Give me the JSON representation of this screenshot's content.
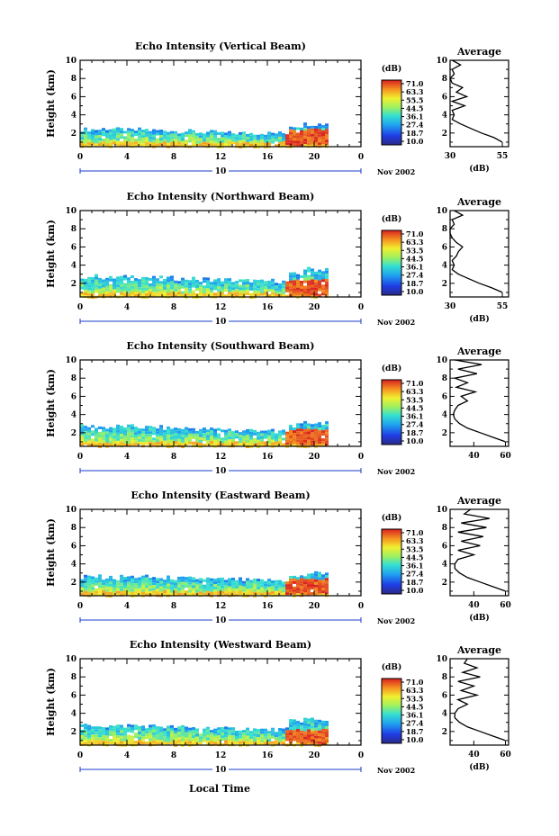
{
  "chart_data": [
    {
      "type": "heatmap",
      "title": "Echo Intensity (Vertical Beam)",
      "ylabel": "Height (km)",
      "xlim": [
        0,
        24
      ],
      "ylim": [
        0.5,
        10
      ],
      "x_ticks": [
        "0",
        "4",
        "8",
        "12",
        "16",
        "20",
        "0"
      ],
      "y_ticks": [
        "2",
        "4",
        "6",
        "8",
        "10"
      ],
      "date_marker": "10",
      "date_label": "Nov 2002",
      "echo_top_km": [
        2.4,
        2.4,
        2.5,
        2.4,
        2.3,
        2.4,
        2.3,
        2.3,
        2.2,
        2.2,
        2.1,
        2.1,
        2.0,
        2.0,
        2.0,
        2.0,
        2.0,
        2.0,
        2.8,
        3.0,
        3.0,
        3.1
      ],
      "strong_echo": {
        "start_h": 17.5,
        "end_h": 21.2,
        "from_km": 0.8,
        "to_km": 2.5
      },
      "colorbar": {
        "unit": "(dB)",
        "labels": [
          "71.0",
          "63.3",
          "55.5",
          "44.5",
          "36.1",
          "27.4",
          "18.7",
          "10.0"
        ]
      },
      "average": {
        "title": "Average",
        "xlabel": "(dB)",
        "x_ticks": [
          "30",
          "55"
        ],
        "xlim": [
          30,
          58
        ],
        "y_ticks": [
          "2",
          "4",
          "6",
          "8",
          "10"
        ],
        "profile": [
          [
            55,
            1
          ],
          [
            51,
            1.5
          ],
          [
            45,
            2
          ],
          [
            40,
            2.5
          ],
          [
            35,
            3
          ],
          [
            31,
            3.5
          ],
          [
            32,
            4
          ],
          [
            31,
            4.5
          ],
          [
            37,
            5
          ],
          [
            31,
            5.5
          ],
          [
            38,
            6
          ],
          [
            33,
            6.5
          ],
          [
            36,
            7
          ],
          [
            31,
            7.5
          ],
          [
            30,
            8
          ],
          [
            32,
            8.5
          ],
          [
            31,
            9
          ],
          [
            35,
            9.5
          ],
          [
            31,
            10
          ]
        ]
      }
    },
    {
      "type": "heatmap",
      "title": "Echo Intensity (Northward Beam)",
      "ylabel": "Height (km)",
      "xlim": [
        0,
        24
      ],
      "ylim": [
        0.5,
        10
      ],
      "x_ticks": [
        "0",
        "4",
        "8",
        "12",
        "16",
        "20",
        "0"
      ],
      "y_ticks": [
        "2",
        "4",
        "6",
        "8",
        "10"
      ],
      "date_marker": "10",
      "date_label": "Nov 2002",
      "echo_top_km": [
        2.7,
        2.8,
        2.6,
        2.7,
        2.8,
        2.7,
        2.6,
        2.6,
        2.5,
        2.5,
        2.5,
        2.4,
        2.4,
        2.3,
        2.3,
        2.2,
        2.3,
        2.2,
        3.0,
        3.6,
        3.5,
        3.7
      ],
      "strong_echo": {
        "start_h": 17.5,
        "end_h": 21.2,
        "from_km": 0.8,
        "to_km": 2.5
      },
      "colorbar": {
        "unit": "(dB)",
        "labels": [
          "71.0",
          "63.3",
          "53.5",
          "44.5",
          "36.1",
          "27.4",
          "18.7",
          "10.0"
        ]
      },
      "average": {
        "title": "Average",
        "xlabel": "(dB)",
        "x_ticks": [
          "30",
          "55"
        ],
        "xlim": [
          30,
          58
        ],
        "y_ticks": [
          "2",
          "4",
          "6",
          "8",
          "10"
        ],
        "profile": [
          [
            55,
            1
          ],
          [
            50,
            1.5
          ],
          [
            44,
            2
          ],
          [
            39,
            2.5
          ],
          [
            34,
            3
          ],
          [
            31,
            3.5
          ],
          [
            32,
            4
          ],
          [
            31,
            4.5
          ],
          [
            33,
            5
          ],
          [
            34,
            5.5
          ],
          [
            36,
            6
          ],
          [
            33,
            6.5
          ],
          [
            31,
            7
          ],
          [
            30,
            7.5
          ],
          [
            30,
            8
          ],
          [
            32,
            8.5
          ],
          [
            31,
            9
          ],
          [
            36,
            9.5
          ],
          [
            32,
            10
          ]
        ]
      }
    },
    {
      "type": "heatmap",
      "title": "Echo Intensity (Southward Beam)",
      "ylabel": "Height (km)",
      "xlim": [
        0,
        24
      ],
      "ylim": [
        0.5,
        10
      ],
      "x_ticks": [
        "0",
        "4",
        "8",
        "12",
        "16",
        "20",
        "0"
      ],
      "y_ticks": [
        "2",
        "4",
        "6",
        "8",
        "10"
      ],
      "date_marker": "10",
      "date_label": "Nov 2002",
      "echo_top_km": [
        2.7,
        2.7,
        2.6,
        2.7,
        2.7,
        2.6,
        2.6,
        2.5,
        2.5,
        2.5,
        2.4,
        2.4,
        2.4,
        2.3,
        2.3,
        2.3,
        2.2,
        2.2,
        2.8,
        3.1,
        3.1,
        3.2
      ],
      "strong_echo": {
        "start_h": 17.5,
        "end_h": 21.2,
        "from_km": 0.8,
        "to_km": 2.5
      },
      "colorbar": {
        "unit": "(dB)",
        "labels": [
          "71.0",
          "63.3",
          "53.5",
          "44.5",
          "36.1",
          "27.4",
          "18.7",
          "10.0"
        ]
      },
      "average": {
        "title": "Average",
        "xlabel": "",
        "x_ticks": [
          "40",
          "60"
        ],
        "xlim": [
          25,
          62
        ],
        "y_ticks": [
          "2",
          "4",
          "6",
          "8",
          "10"
        ],
        "profile": [
          [
            60,
            1
          ],
          [
            52,
            1.5
          ],
          [
            44,
            2
          ],
          [
            36,
            2.5
          ],
          [
            31,
            3
          ],
          [
            28,
            3.5
          ],
          [
            27,
            4
          ],
          [
            28,
            4.5
          ],
          [
            30,
            5
          ],
          [
            36,
            5.5
          ],
          [
            32,
            6
          ],
          [
            41,
            6.5
          ],
          [
            29,
            7
          ],
          [
            36,
            7.5
          ],
          [
            28,
            8
          ],
          [
            42,
            8.5
          ],
          [
            30,
            9
          ],
          [
            45,
            9.5
          ],
          [
            28,
            10
          ]
        ]
      }
    },
    {
      "type": "heatmap",
      "title": "Echo Intensity (Eastward Beam)",
      "ylabel": "Height (km)",
      "xlim": [
        0,
        24
      ],
      "ylim": [
        0.5,
        10
      ],
      "x_ticks": [
        "0",
        "4",
        "8",
        "12",
        "16",
        "20",
        "0"
      ],
      "y_ticks": [
        "2",
        "4",
        "6",
        "8",
        "10"
      ],
      "date_marker": "10",
      "date_label": "Nov 2002",
      "echo_top_km": [
        2.6,
        2.6,
        2.5,
        2.6,
        2.6,
        2.6,
        2.5,
        2.5,
        2.4,
        2.4,
        2.4,
        2.3,
        2.3,
        2.3,
        2.2,
        2.2,
        2.2,
        2.2,
        2.6,
        3.0,
        3.0,
        3.1
      ],
      "strong_echo": {
        "start_h": 17.5,
        "end_h": 21.2,
        "from_km": 0.8,
        "to_km": 2.5
      },
      "colorbar": {
        "unit": "(dB)",
        "labels": [
          "71.0",
          "63.3",
          "53.5",
          "44.5",
          "36.1",
          "27.4",
          "18.7",
          "10.0"
        ]
      },
      "average": {
        "title": "Average",
        "xlabel": "(dB)",
        "x_ticks": [
          "40",
          "60"
        ],
        "xlim": [
          25,
          62
        ],
        "y_ticks": [
          "2",
          "4",
          "6",
          "8",
          "10"
        ],
        "profile": [
          [
            60,
            1
          ],
          [
            52,
            1.5
          ],
          [
            44,
            2
          ],
          [
            36,
            2.5
          ],
          [
            31,
            3
          ],
          [
            28,
            3.5
          ],
          [
            28,
            4
          ],
          [
            30,
            4.5
          ],
          [
            40,
            5
          ],
          [
            30,
            5.5
          ],
          [
            44,
            6
          ],
          [
            32,
            6.5
          ],
          [
            46,
            7
          ],
          [
            30,
            7.5
          ],
          [
            48,
            8
          ],
          [
            32,
            8.5
          ],
          [
            50,
            9
          ],
          [
            34,
            9.5
          ],
          [
            38,
            10
          ]
        ]
      }
    },
    {
      "type": "heatmap",
      "title": "Echo Intensity (Westward Beam)",
      "ylabel": "Height (km)",
      "xlim": [
        0,
        24
      ],
      "ylim": [
        0.5,
        10
      ],
      "x_ticks": [
        "0",
        "4",
        "8",
        "12",
        "16",
        "20",
        "0"
      ],
      "y_ticks": [
        "2",
        "4",
        "6",
        "8",
        "10"
      ],
      "date_marker": "10",
      "date_label": "Nov 2002",
      "echo_top_km": [
        2.7,
        2.7,
        2.6,
        2.6,
        2.7,
        2.6,
        2.6,
        2.5,
        2.5,
        2.4,
        2.4,
        2.4,
        2.3,
        2.3,
        2.3,
        2.2,
        2.2,
        2.2,
        3.2,
        3.4,
        3.2,
        3.3
      ],
      "strong_echo": {
        "start_h": 17.5,
        "end_h": 21.2,
        "from_km": 0.8,
        "to_km": 2.3
      },
      "colorbar": {
        "unit": "(dB)",
        "labels": [
          "71.0",
          "63.3",
          "53.5",
          "44.5",
          "36.1",
          "27.4",
          "18.7",
          "10.0"
        ]
      },
      "average": {
        "title": "Average",
        "xlabel": "(dB)",
        "x_ticks": [
          "40",
          "60"
        ],
        "xlim": [
          25,
          62
        ],
        "y_ticks": [
          "2",
          "4",
          "6",
          "8",
          "10"
        ],
        "profile": [
          [
            60,
            1
          ],
          [
            52,
            1.5
          ],
          [
            44,
            2
          ],
          [
            36,
            2.5
          ],
          [
            31,
            3
          ],
          [
            28,
            3.5
          ],
          [
            28,
            4
          ],
          [
            30,
            4.5
          ],
          [
            36,
            5
          ],
          [
            30,
            5.5
          ],
          [
            42,
            6
          ],
          [
            32,
            6.5
          ],
          [
            40,
            7
          ],
          [
            30,
            7.5
          ],
          [
            44,
            8
          ],
          [
            33,
            8.5
          ],
          [
            42,
            9
          ],
          [
            34,
            9.5
          ],
          [
            36,
            10
          ]
        ]
      }
    }
  ],
  "xlabel_bottom": "Local Time"
}
